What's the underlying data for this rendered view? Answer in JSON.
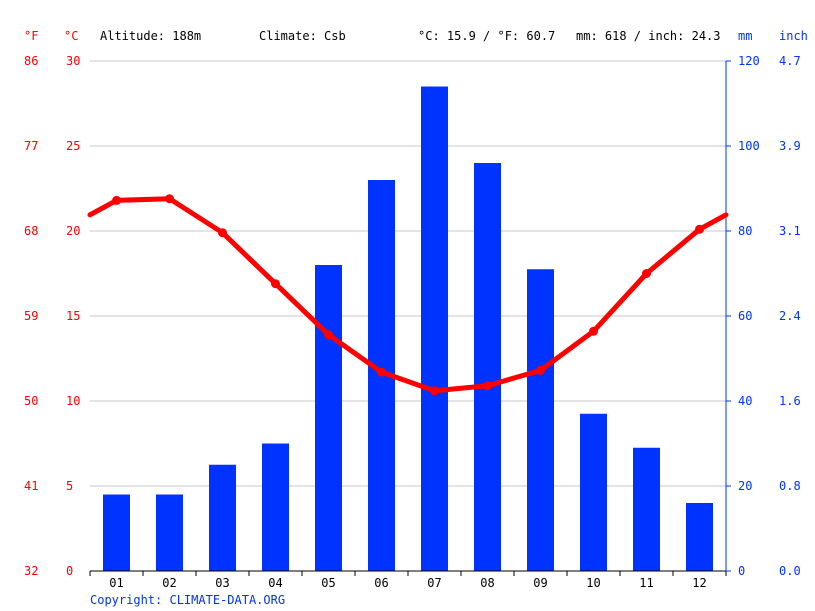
{
  "header": {
    "unit_f": "°F",
    "unit_c": "°C",
    "altitude": "Altitude: 188m",
    "climate": "Climate: Csb",
    "temp_summary": "°C: 15.9 / °F: 60.7",
    "precip_summary": "mm: 618 / inch: 24.3",
    "unit_mm": "mm",
    "unit_inch": "inch"
  },
  "footer": {
    "copyright": "Copyright: CLIMATE-DATA.ORG"
  },
  "colors": {
    "temperature": "#ff0000",
    "precipitation": "#0033ff",
    "grid": "#c8c8c8"
  },
  "chart_data": {
    "type": "bar",
    "categories": [
      "01",
      "02",
      "03",
      "04",
      "05",
      "06",
      "07",
      "08",
      "09",
      "10",
      "11",
      "12"
    ],
    "series": [
      {
        "kind": "bar",
        "axis": "right",
        "values": [
          18,
          18,
          25,
          30,
          72,
          92,
          114,
          96,
          71,
          37,
          29,
          16
        ]
      },
      {
        "kind": "line",
        "axis": "left",
        "values": [
          21.8,
          21.9,
          19.9,
          16.9,
          13.9,
          11.7,
          10.6,
          10.9,
          11.8,
          14.1,
          17.5,
          20.1
        ]
      }
    ],
    "left_ticks_c": [
      "0",
      "5",
      "10",
      "15",
      "20",
      "25",
      "30"
    ],
    "left_ticks_f": [
      "32",
      "41",
      "50",
      "59",
      "68",
      "77",
      "86"
    ],
    "right_ticks_mm": [
      "0",
      "20",
      "40",
      "60",
      "80",
      "100",
      "120"
    ],
    "right_ticks_inch": [
      "0.0",
      "0.8",
      "1.6",
      "2.4",
      "3.1",
      "3.9",
      "4.7"
    ],
    "ylim_c": [
      0,
      30
    ],
    "ylim_mm": [
      0,
      120
    ],
    "grid": true
  }
}
